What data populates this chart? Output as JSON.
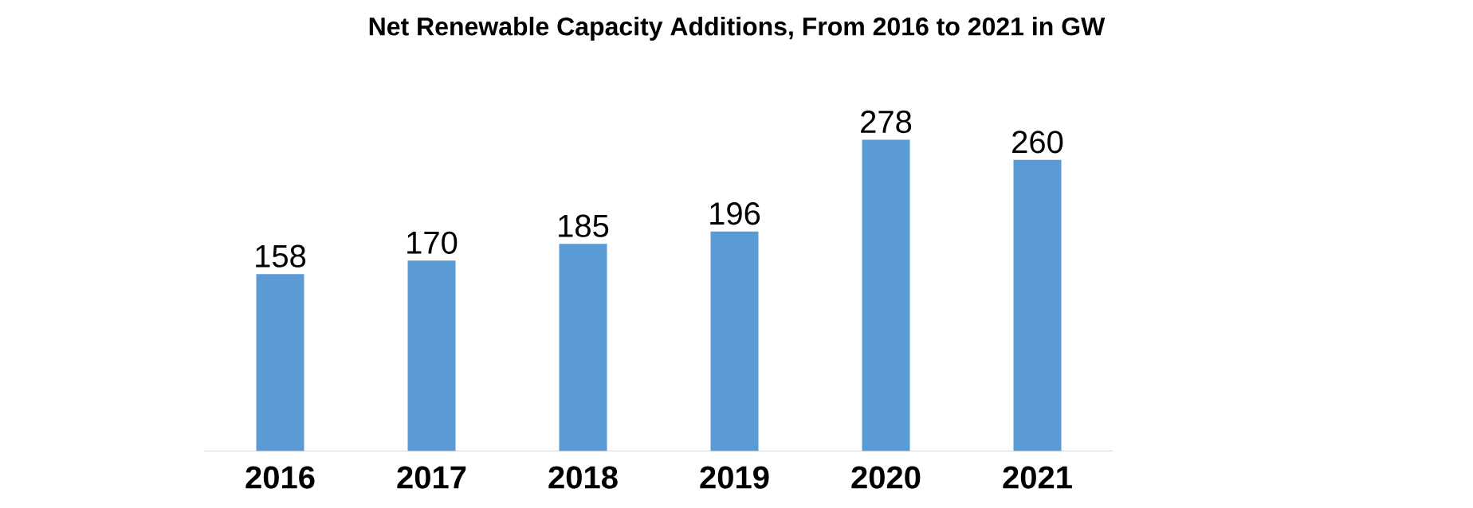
{
  "chart_data": {
    "type": "bar",
    "title": "Net Renewable Capacity Additions, From 2016 to 2021 in GW",
    "categories": [
      "2016",
      "2017",
      "2018",
      "2019",
      "2020",
      "2021"
    ],
    "values": [
      158,
      170,
      185,
      196,
      278,
      260
    ],
    "color": "#5b9bd5",
    "data_labels": true
  }
}
